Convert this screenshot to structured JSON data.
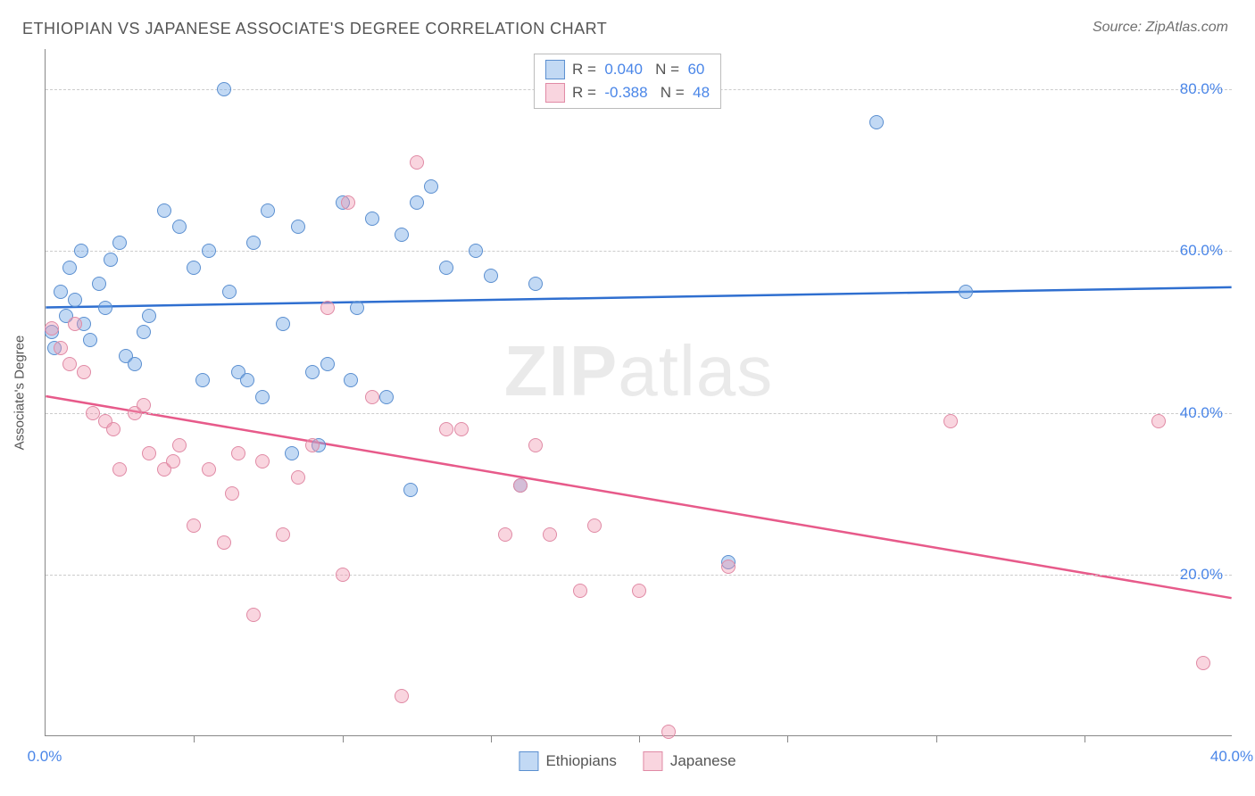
{
  "title": "ETHIOPIAN VS JAPANESE ASSOCIATE'S DEGREE CORRELATION CHART",
  "source": "Source: ZipAtlas.com",
  "ylabel": "Associate's Degree",
  "watermark_bold": "ZIP",
  "watermark_rest": "atlas",
  "chart": {
    "type": "scatter",
    "background_color": "#ffffff",
    "grid_color": "#cccccc",
    "axis_color": "#888888",
    "xlim": [
      0,
      40
    ],
    "ylim": [
      0,
      85
    ],
    "y_ticks": [
      20,
      40,
      60,
      80
    ],
    "y_tick_labels": [
      "20.0%",
      "40.0%",
      "60.0%",
      "80.0%"
    ],
    "y_tick_color": "#4a86e8",
    "x_ticks": [
      0,
      5,
      10,
      15,
      20,
      25,
      30,
      35,
      40
    ],
    "x_tick_labels_shown": {
      "0": "0.0%",
      "40": "40.0%"
    },
    "x_tick_color": "#4a86e8",
    "marker_radius": 8,
    "marker_border_width": 1.5,
    "line_width": 2.5
  },
  "series": [
    {
      "name": "Ethiopians",
      "fill_color": "rgba(120,170,230,0.45)",
      "stroke_color": "#5b8fd0",
      "line_color": "#2f6fd0",
      "R": "0.040",
      "N": "60",
      "trend": {
        "x1": 0,
        "y1": 53,
        "x2": 40,
        "y2": 55.5
      },
      "points": [
        [
          0.2,
          50
        ],
        [
          0.3,
          48
        ],
        [
          0.5,
          55
        ],
        [
          0.7,
          52
        ],
        [
          0.8,
          58
        ],
        [
          1.0,
          54
        ],
        [
          1.2,
          60
        ],
        [
          1.3,
          51
        ],
        [
          1.5,
          49
        ],
        [
          1.8,
          56
        ],
        [
          2.0,
          53
        ],
        [
          2.2,
          59
        ],
        [
          2.5,
          61
        ],
        [
          2.7,
          47
        ],
        [
          3.0,
          46
        ],
        [
          3.3,
          50
        ],
        [
          3.5,
          52
        ],
        [
          4.0,
          65
        ],
        [
          4.5,
          63
        ],
        [
          5.0,
          58
        ],
        [
          5.3,
          44
        ],
        [
          5.5,
          60
        ],
        [
          6.0,
          80
        ],
        [
          6.2,
          55
        ],
        [
          6.5,
          45
        ],
        [
          6.8,
          44
        ],
        [
          7.0,
          61
        ],
        [
          7.3,
          42
        ],
        [
          7.5,
          65
        ],
        [
          8.0,
          51
        ],
        [
          8.3,
          35
        ],
        [
          8.5,
          63
        ],
        [
          9.0,
          45
        ],
        [
          9.2,
          36
        ],
        [
          9.5,
          46
        ],
        [
          10.0,
          66
        ],
        [
          10.3,
          44
        ],
        [
          10.5,
          53
        ],
        [
          11.0,
          64
        ],
        [
          11.5,
          42
        ],
        [
          12.0,
          62
        ],
        [
          12.3,
          30.5
        ],
        [
          12.5,
          66
        ],
        [
          13.0,
          68
        ],
        [
          13.5,
          58
        ],
        [
          14.5,
          60
        ],
        [
          15.0,
          57
        ],
        [
          16.0,
          31
        ],
        [
          16.5,
          56
        ],
        [
          23.0,
          21.5
        ],
        [
          28.0,
          76
        ],
        [
          31.0,
          55
        ]
      ]
    },
    {
      "name": "Japanese",
      "fill_color": "rgba(240,150,175,0.40)",
      "stroke_color": "#e08aa5",
      "line_color": "#e75a8a",
      "R": "-0.388",
      "N": "48",
      "trend": {
        "x1": 0,
        "y1": 42,
        "x2": 40,
        "y2": 17
      },
      "points": [
        [
          0.2,
          50.5
        ],
        [
          0.5,
          48
        ],
        [
          0.8,
          46
        ],
        [
          1.0,
          51
        ],
        [
          1.3,
          45
        ],
        [
          1.6,
          40
        ],
        [
          2.0,
          39
        ],
        [
          2.3,
          38
        ],
        [
          2.5,
          33
        ],
        [
          3.0,
          40
        ],
        [
          3.3,
          41
        ],
        [
          3.5,
          35
        ],
        [
          4.0,
          33
        ],
        [
          4.3,
          34
        ],
        [
          4.5,
          36
        ],
        [
          5.0,
          26
        ],
        [
          5.5,
          33
        ],
        [
          6.0,
          24
        ],
        [
          6.3,
          30
        ],
        [
          6.5,
          35
        ],
        [
          7.0,
          15
        ],
        [
          7.3,
          34
        ],
        [
          8.0,
          25
        ],
        [
          8.5,
          32
        ],
        [
          9.0,
          36
        ],
        [
          9.5,
          53
        ],
        [
          10.0,
          20
        ],
        [
          10.2,
          66
        ],
        [
          11.0,
          42
        ],
        [
          12.0,
          5
        ],
        [
          12.5,
          71
        ],
        [
          13.5,
          38
        ],
        [
          14.0,
          38
        ],
        [
          15.5,
          25
        ],
        [
          16.0,
          31
        ],
        [
          16.5,
          36
        ],
        [
          17.0,
          25
        ],
        [
          18.0,
          18
        ],
        [
          18.5,
          26
        ],
        [
          20.0,
          18
        ],
        [
          21.0,
          0.5
        ],
        [
          23.0,
          21
        ],
        [
          30.5,
          39
        ],
        [
          37.5,
          39
        ],
        [
          39.0,
          9
        ]
      ]
    }
  ],
  "legend_top": {
    "rows": [
      {
        "swatch_fill": "rgba(120,170,230,0.45)",
        "swatch_stroke": "#5b8fd0",
        "R_label": "R =",
        "R_val": "0.040",
        "N_label": "N =",
        "N_val": "60"
      },
      {
        "swatch_fill": "rgba(240,150,175,0.40)",
        "swatch_stroke": "#e08aa5",
        "R_label": "R =",
        "R_val": "-0.388",
        "N_label": "N =",
        "N_val": "48"
      }
    ],
    "label_color": "#555555",
    "value_color": "#4a86e8"
  },
  "legend_bottom": {
    "items": [
      {
        "swatch_fill": "rgba(120,170,230,0.45)",
        "swatch_stroke": "#5b8fd0",
        "label": "Ethiopians"
      },
      {
        "swatch_fill": "rgba(240,150,175,0.40)",
        "swatch_stroke": "#e08aa5",
        "label": "Japanese"
      }
    ]
  }
}
